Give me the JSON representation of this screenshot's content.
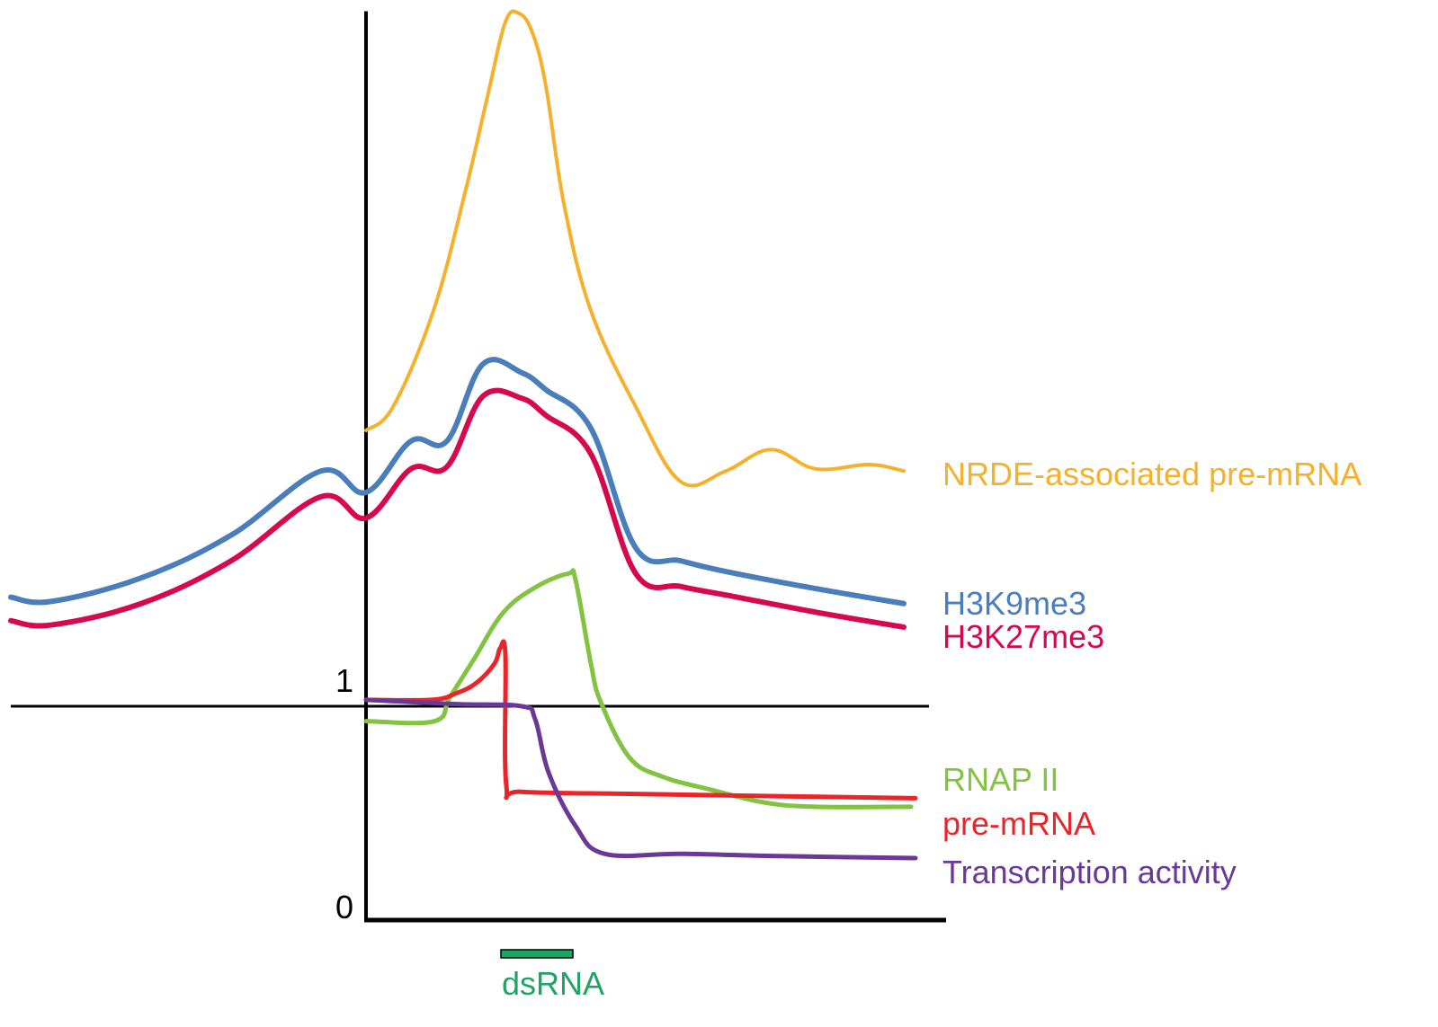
{
  "chart_data": {
    "type": "line",
    "title": "",
    "xlabel": "",
    "ylabel": "",
    "x_units": "arbitrary genomic position (0 = y-axis)",
    "xlim": [
      -3.95,
      6.45
    ],
    "ylim": [
      0,
      4.25
    ],
    "grid": false,
    "y_ticks": [
      {
        "value": 0,
        "label": "0"
      },
      {
        "value": 1,
        "label": "1"
      }
    ],
    "reference_line": {
      "y": 1,
      "x_range": [
        -3.95,
        6.26
      ]
    },
    "legend_placement": "right (inline labels at line ends)",
    "annotation": {
      "label": "dsRNA",
      "x_range": [
        1.5,
        2.3
      ],
      "color": "#21A366"
    },
    "series": [
      {
        "name": "NRDE-associated pre-mRNA",
        "color": "#F5B02D",
        "x": [
          0.0,
          0.3,
          0.75,
          1.1,
          1.35,
          1.55,
          1.7,
          1.85,
          2.0,
          2.2,
          2.5,
          3.0,
          3.5,
          4.0,
          4.5,
          5.0,
          5.6,
          5.98
        ],
        "y": [
          2.29,
          2.4,
          2.85,
          3.4,
          3.85,
          4.2,
          4.24,
          4.15,
          3.9,
          3.35,
          2.85,
          2.4,
          2.05,
          2.1,
          2.2,
          2.11,
          2.13,
          2.1
        ],
        "y_note": "approximate"
      },
      {
        "name": "H3K9me3",
        "color": "#4A7EBB",
        "x": [
          -3.95,
          -3.5,
          -2.5,
          -1.5,
          -0.5,
          0.0,
          0.5,
          0.9,
          1.3,
          1.73,
          2.0,
          2.5,
          3.0,
          3.5,
          4.0,
          5.0,
          5.98
        ],
        "y": [
          1.51,
          1.49,
          1.6,
          1.8,
          2.1,
          2.0,
          2.24,
          2.24,
          2.6,
          2.56,
          2.48,
          2.3,
          1.74,
          1.68,
          1.63,
          1.55,
          1.48
        ],
        "y_note": "approximate"
      },
      {
        "name": "H3K27me3",
        "color": "#D6094F",
        "x": [
          -3.95,
          -3.5,
          -2.5,
          -1.5,
          -0.5,
          0.0,
          0.5,
          0.9,
          1.3,
          1.73,
          2.0,
          2.5,
          3.0,
          3.5,
          4.0,
          5.0,
          5.98
        ],
        "y": [
          1.4,
          1.38,
          1.48,
          1.68,
          1.98,
          1.88,
          2.11,
          2.12,
          2.45,
          2.44,
          2.36,
          2.18,
          1.62,
          1.56,
          1.52,
          1.44,
          1.37
        ],
        "y_note": "approximate"
      },
      {
        "name": "RNAP II",
        "color": "#82C341",
        "x": [
          0.0,
          0.76,
          0.93,
          1.2,
          1.53,
          1.9,
          2.25,
          2.33,
          2.5,
          2.61,
          2.93,
          3.3,
          3.83,
          4.43,
          5.0,
          6.06
        ],
        "y": [
          0.93,
          0.93,
          1.04,
          1.22,
          1.44,
          1.56,
          1.62,
          1.59,
          1.2,
          1.02,
          0.76,
          0.67,
          0.61,
          0.55,
          0.53,
          0.53
        ],
        "y_note": "approximate"
      },
      {
        "name": "pre-mRNA",
        "color": "#E8262A",
        "x": [
          0.0,
          0.73,
          1.0,
          1.23,
          1.43,
          1.49,
          1.55,
          1.56,
          1.73,
          3.0,
          4.5,
          6.11
        ],
        "y": [
          1.03,
          1.03,
          1.06,
          1.11,
          1.2,
          1.27,
          1.24,
          0.63,
          0.6,
          0.59,
          0.58,
          0.57
        ],
        "y_note": "approximate"
      },
      {
        "name": "Transcription activity",
        "color": "#6A3996",
        "x": [
          0.0,
          1.0,
          1.73,
          1.88,
          2.03,
          2.33,
          2.65,
          3.5,
          4.5,
          6.11
        ],
        "y": [
          1.03,
          1.01,
          1.0,
          0.94,
          0.69,
          0.44,
          0.31,
          0.31,
          0.3,
          0.29
        ],
        "y_note": "approximate"
      }
    ]
  }
}
